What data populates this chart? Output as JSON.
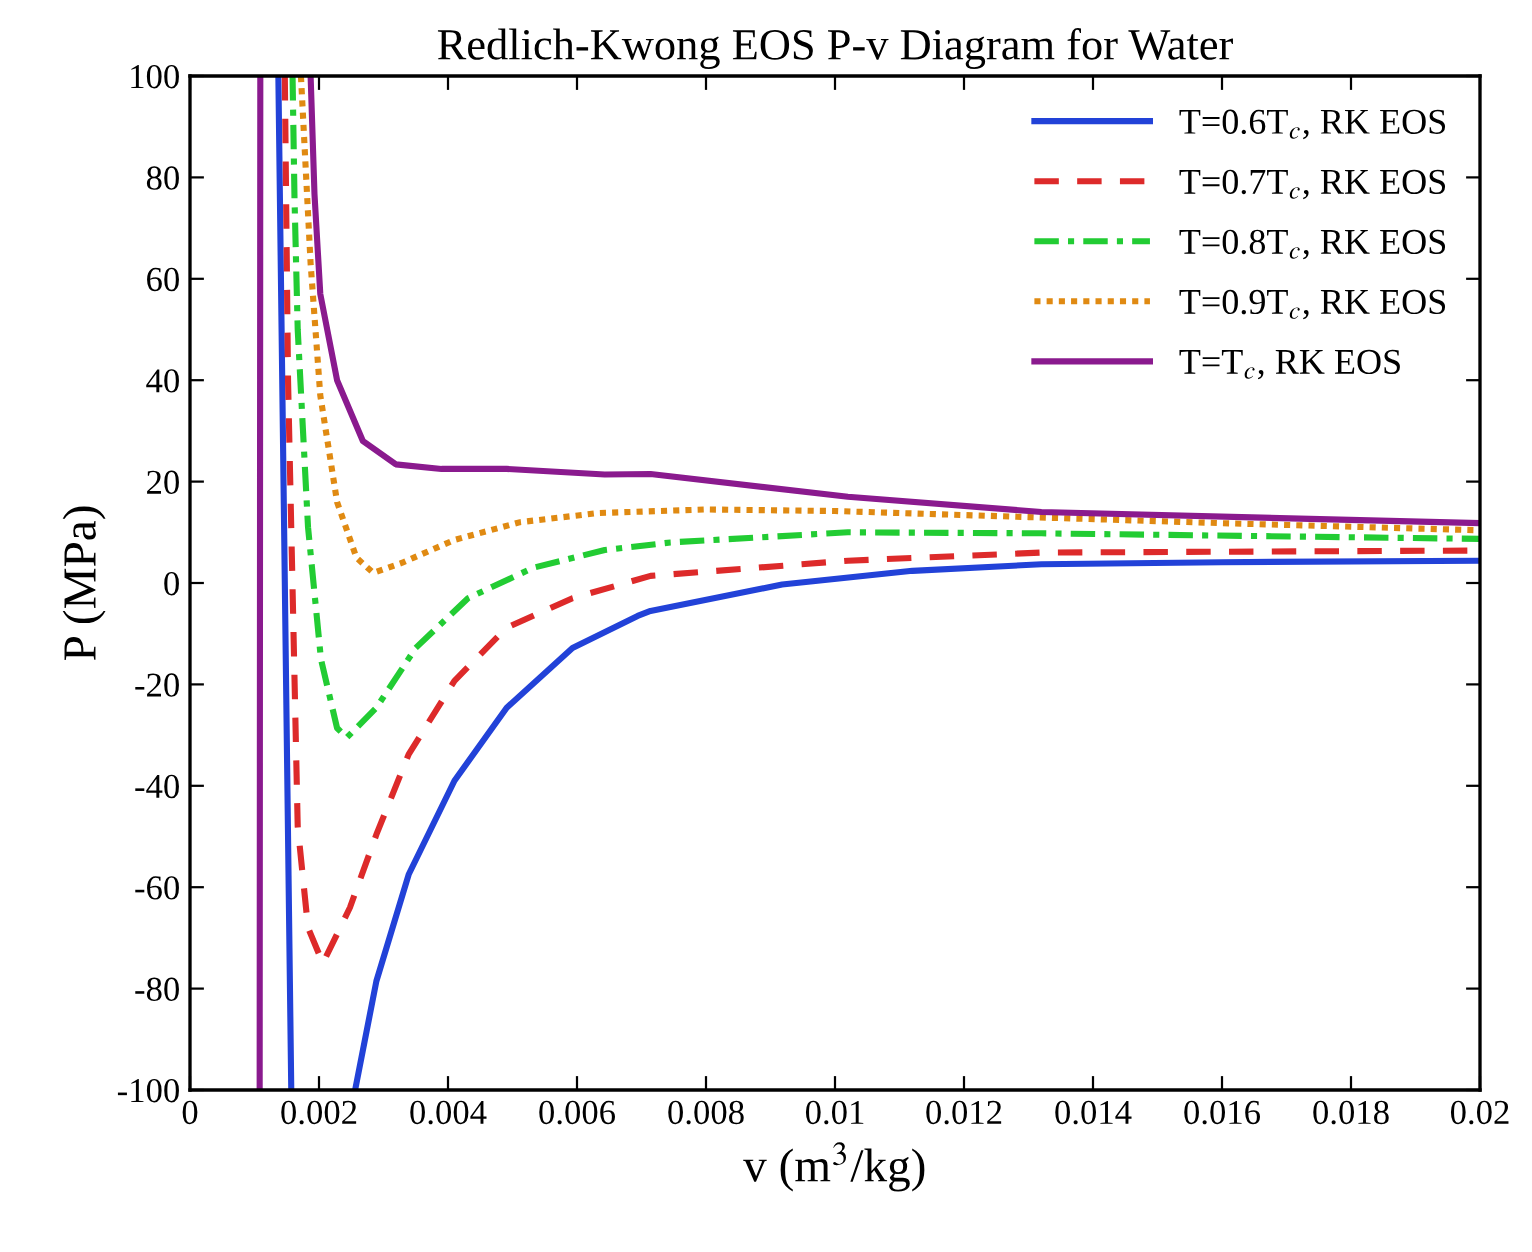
{
  "chart_data": {
    "type": "line",
    "title": "Redlich-Kwong EOS P-v Diagram for Water",
    "xlabel": "v (m$^{3}$/kg)",
    "ylabel": "P (MPa)",
    "xlim": [
      0,
      0.02
    ],
    "ylim": [
      -100,
      100
    ],
    "xticks": [
      0,
      0.002,
      0.004,
      0.006,
      0.008,
      0.01,
      0.012,
      0.014,
      0.016,
      0.018,
      0.02
    ],
    "yticks": [
      -100,
      -80,
      -60,
      -40,
      -20,
      0,
      20,
      40,
      60,
      80,
      100
    ],
    "grid": false,
    "legend": "top right",
    "series": [
      {
        "name": "T=0.6T$_{c}$, RK EOS",
        "color": "#2242d8",
        "line_style": "solid",
        "x": [
          0.00137,
          0.00157,
          0.002,
          0.00256,
          0.00289,
          0.00339,
          0.0041,
          0.00491,
          0.00593,
          0.00694,
          0.00714,
          0.00918,
          0.0112,
          0.0132,
          0.016,
          0.02
        ],
        "values": [
          100,
          -100,
          null,
          -100,
          -78.5,
          -57.5,
          -39,
          -24.6,
          -12.8,
          -6.5,
          -5.5,
          -0.3,
          2.4,
          3.7,
          4.1,
          4.4
        ]
      },
      {
        "name": "T=0.7T$_{c}$, RK EOS",
        "color": "#dd2a2a",
        "line_style": "dashed",
        "x": [
          0.00147,
          0.00152,
          0.00167,
          0.00183,
          0.00206,
          0.00248,
          0.00289,
          0.00339,
          0.0041,
          0.00491,
          0.00593,
          0.00714,
          0.0102,
          0.0132,
          0.02
        ],
        "values": [
          100,
          40,
          -48,
          -68,
          -75,
          -64,
          -49.6,
          -33.8,
          -19.3,
          -8.8,
          -3,
          1.4,
          4.4,
          6,
          6.4
        ]
      },
      {
        "name": "T=0.8T$_{c}$, RK EOS",
        "color": "#22cc33",
        "line_style": "dashdot",
        "x": [
          0.00159,
          0.00162,
          0.00167,
          0.00183,
          0.00203,
          0.00228,
          0.00243,
          0.00289,
          0.0035,
          0.00431,
          0.00532,
          0.00643,
          0.00745,
          0.0102,
          0.0132,
          0.02
        ],
        "values": [
          100,
          76,
          50,
          11,
          -15,
          -28.6,
          -30.5,
          -24.6,
          -12.8,
          -3,
          3,
          6.5,
          8,
          10,
          9.8,
          8.7
        ]
      },
      {
        "name": "T=0.9T$_{c}$, RK EOS",
        "color": "#e08a12",
        "line_style": "dotted",
        "x": [
          0.00172,
          0.00187,
          0.00202,
          0.00228,
          0.00258,
          0.00284,
          0.00329,
          0.0041,
          0.00512,
          0.00633,
          0.008,
          0.01,
          0.013,
          0.016,
          0.02
        ],
        "values": [
          100,
          63,
          37,
          16,
          5,
          2,
          4,
          8.5,
          12,
          13.8,
          14.5,
          14.2,
          13,
          11.8,
          10.4
        ]
      },
      {
        "name": "T=T$_{c}$, RK EOS",
        "color": "#8a1a8e",
        "line_style": "solid",
        "x": [
          0.00108,
          0.00109,
          null,
          0.00187,
          0.00193,
          0.00202,
          0.00228,
          0.00268,
          0.00319,
          0.0039,
          0.00491,
          0.00643,
          0.00714,
          0.0102,
          0.0132,
          0.02
        ],
        "values": [
          -100,
          100,
          null,
          100,
          76.7,
          57,
          40,
          28,
          23.4,
          22.5,
          22.5,
          21.4,
          21.5,
          17,
          14,
          11.8
        ]
      }
    ]
  }
}
